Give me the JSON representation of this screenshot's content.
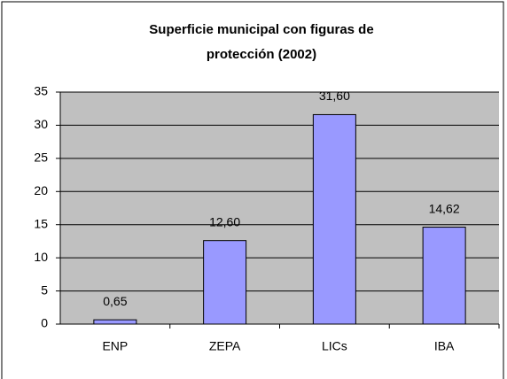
{
  "chart_data": {
    "type": "bar",
    "title": "Superficie municipal con figuras de protección (2002)",
    "categories": [
      "ENP",
      "ZEPA",
      "LICs",
      "IBA"
    ],
    "values": [
      0.65,
      12.6,
      31.6,
      14.62
    ],
    "value_labels": [
      "0,65",
      "12,60",
      "31,60",
      "14,62"
    ],
    "color": "#9999ff",
    "plot_background": "#c0c0c0",
    "ylim": [
      0,
      35
    ],
    "yticks": [
      0,
      5,
      10,
      15,
      20,
      25,
      30,
      35
    ],
    "grid": true
  }
}
